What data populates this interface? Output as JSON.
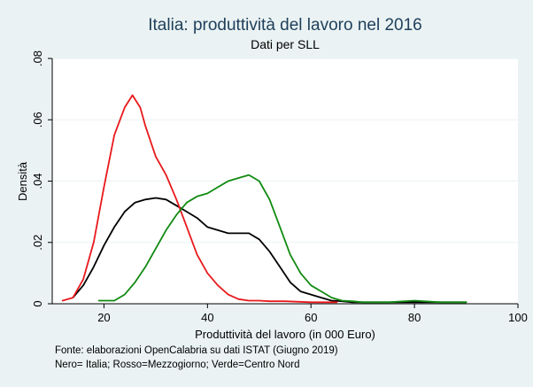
{
  "chart_data": {
    "type": "line",
    "title": "Italia: produttività del lavoro nel 2016",
    "subtitle": "Dati per SLL",
    "xlabel": "Produttività del lavoro (in 000 Euro)",
    "ylabel": "Densità",
    "xlim": [
      10,
      100
    ],
    "ylim": [
      0,
      0.08
    ],
    "xticks": [
      20,
      40,
      60,
      80,
      100
    ],
    "xtick_labels": [
      "20",
      "40",
      "60",
      "80",
      "100"
    ],
    "yticks": [
      0,
      0.02,
      0.04,
      0.06,
      0.08
    ],
    "ytick_labels": [
      "0",
      ".02",
      ".04",
      ".06",
      ".08"
    ],
    "grid": "horizontal",
    "notes": [
      "Fonte: elaborazioni OpenCalabria su dati ISTAT (Giugno 2019)",
      "Nero= Italia; Rosso=Mezzogiorno; Verde=Centro Nord"
    ],
    "series": [
      {
        "color": "#000000",
        "x": [
          14,
          16,
          18,
          20,
          22,
          24,
          26,
          28,
          30,
          32,
          34,
          36,
          38,
          40,
          42,
          44,
          46,
          48,
          50,
          52,
          54,
          56,
          58,
          60,
          62,
          64,
          66,
          68,
          70,
          75,
          80,
          85,
          90
        ],
        "y": [
          0.002,
          0.006,
          0.012,
          0.019,
          0.025,
          0.03,
          0.033,
          0.034,
          0.0345,
          0.034,
          0.032,
          0.03,
          0.028,
          0.025,
          0.024,
          0.023,
          0.023,
          0.023,
          0.021,
          0.017,
          0.012,
          0.007,
          0.004,
          0.003,
          0.002,
          0.001,
          0.0008,
          0.0005,
          0.0005,
          0.0005,
          0.0005,
          0.0005,
          0.0005
        ]
      },
      {
        "color": "#e8191c",
        "x": [
          12,
          14,
          16,
          18,
          20,
          22,
          24,
          25.5,
          27,
          28,
          30,
          32,
          34,
          36,
          38,
          40,
          42,
          44,
          46,
          48,
          50,
          52,
          55,
          60,
          65
        ],
        "y": [
          0.001,
          0.002,
          0.008,
          0.02,
          0.038,
          0.055,
          0.064,
          0.068,
          0.064,
          0.058,
          0.048,
          0.042,
          0.034,
          0.025,
          0.016,
          0.01,
          0.006,
          0.003,
          0.0015,
          0.001,
          0.001,
          0.0008,
          0.0008,
          0.0005,
          0.0005
        ]
      },
      {
        "color": "#118a11",
        "x": [
          19,
          22,
          24,
          26,
          28,
          30,
          32,
          34,
          36,
          38,
          40,
          42,
          44,
          46,
          48,
          50,
          52,
          54,
          56,
          58,
          60,
          62,
          64,
          66,
          68,
          70,
          75,
          80,
          85,
          90
        ],
        "y": [
          0.001,
          0.001,
          0.003,
          0.007,
          0.012,
          0.018,
          0.024,
          0.029,
          0.033,
          0.035,
          0.036,
          0.038,
          0.04,
          0.041,
          0.042,
          0.04,
          0.034,
          0.025,
          0.016,
          0.01,
          0.006,
          0.004,
          0.002,
          0.001,
          0.0008,
          0.0005,
          0.0005,
          0.001,
          0.0005,
          0.0005
        ]
      }
    ]
  }
}
